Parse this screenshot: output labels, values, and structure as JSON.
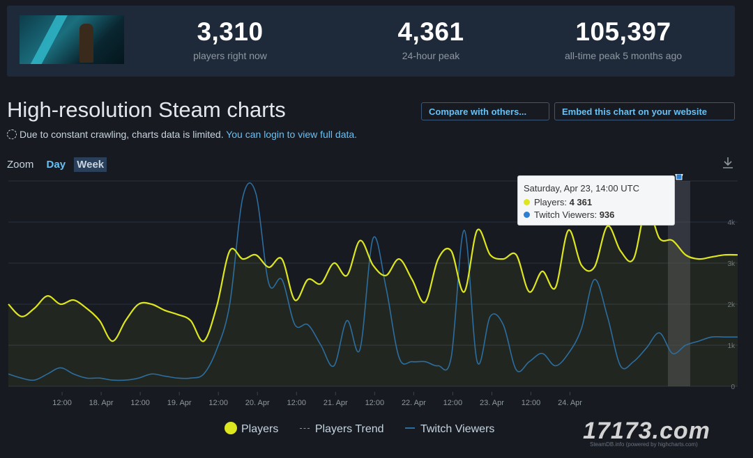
{
  "stats": [
    {
      "value": "3,310",
      "label": "players right now"
    },
    {
      "value": "4,361",
      "label": "24-hour peak"
    },
    {
      "value": "105,397",
      "label": "all-time peak 5 months ago"
    }
  ],
  "page": {
    "heading": "High-resolution Steam charts",
    "compare_button": "Compare with others...",
    "embed_button": "Embed this chart on your website",
    "notice_text": "Due to constant crawling, charts data is limited.",
    "notice_link": "You can login to view full data.",
    "zoom_label": "Zoom",
    "zoom_day": "Day",
    "zoom_week": "Week"
  },
  "tooltip": {
    "title": "Saturday, Apr 23, 14:00 UTC",
    "players_label": "Players:",
    "players_value": "4 361",
    "twitch_label": "Twitch Viewers:",
    "twitch_value": "936"
  },
  "legend": {
    "players": "Players",
    "trend": "Players Trend",
    "twitch": "Twitch Viewers"
  },
  "watermark": "17173.com",
  "credit": "SteamDB.info (powered by highcharts.com)",
  "colors": {
    "players": "#dde61f",
    "twitch": "#2c6e9f",
    "link": "#67c1f5",
    "background": "#171a21"
  },
  "chart_data": {
    "type": "line",
    "xlabel": "",
    "ylabel": "",
    "x_ticks": [
      "12:00",
      "18. Apr",
      "12:00",
      "19. Apr",
      "12:00",
      "20. Apr",
      "12:00",
      "21. Apr",
      "12:00",
      "22. Apr",
      "12:00",
      "23. Apr",
      "12:00",
      "24. Apr"
    ],
    "y_ticks": [
      "0",
      "1k",
      "2k",
      "3k",
      "4k"
    ],
    "ylim": [
      0,
      5000
    ],
    "x_hours_from_start": [
      0,
      4,
      8,
      12,
      16,
      20,
      24,
      28,
      32,
      36,
      40,
      44,
      48,
      52,
      56,
      60,
      64,
      68,
      72,
      76,
      80,
      84,
      88,
      92,
      96,
      100,
      104,
      108,
      112,
      116,
      120,
      124,
      128,
      132,
      136,
      140,
      144,
      148,
      152,
      156,
      160,
      164,
      168,
      172,
      176,
      180,
      184,
      188,
      192,
      196,
      200,
      204,
      208,
      212,
      216,
      220,
      224
    ],
    "series": [
      {
        "name": "Players",
        "values": [
          2000,
          1700,
          1900,
          2200,
          2000,
          2100,
          1900,
          1600,
          1100,
          1600,
          2000,
          2000,
          1850,
          1750,
          1600,
          1100,
          1950,
          3300,
          3100,
          3200,
          2900,
          3100,
          2100,
          2600,
          2500,
          3000,
          2700,
          3550,
          2950,
          2700,
          3100,
          2600,
          2050,
          3100,
          3300,
          2300,
          3800,
          3200,
          3100,
          3200,
          2300,
          2800,
          2400,
          3800,
          2950,
          2900,
          3900,
          3300,
          3100,
          4361,
          3600,
          3550,
          3200,
          3100,
          3150,
          3200,
          3200
        ]
      },
      {
        "name": "Twitch Viewers",
        "values": [
          300,
          200,
          150,
          300,
          450,
          300,
          200,
          200,
          150,
          150,
          200,
          300,
          250,
          200,
          200,
          300,
          900,
          2000,
          4600,
          4700,
          2500,
          2600,
          1500,
          1500,
          1000,
          500,
          1600,
          900,
          3600,
          2400,
          700,
          600,
          600,
          500,
          700,
          3800,
          600,
          1700,
          1500,
          400,
          600,
          800,
          500,
          800,
          1400,
          2600,
          1700,
          500,
          600,
          936,
          1300,
          800,
          1000,
          1100,
          1200,
          1200,
          1200
        ]
      }
    ],
    "highlight": {
      "label": "Saturday, Apr 23, 14:00 UTC",
      "players": 4361,
      "twitch": 936
    },
    "grid": true,
    "legend_position": "bottom-center"
  }
}
